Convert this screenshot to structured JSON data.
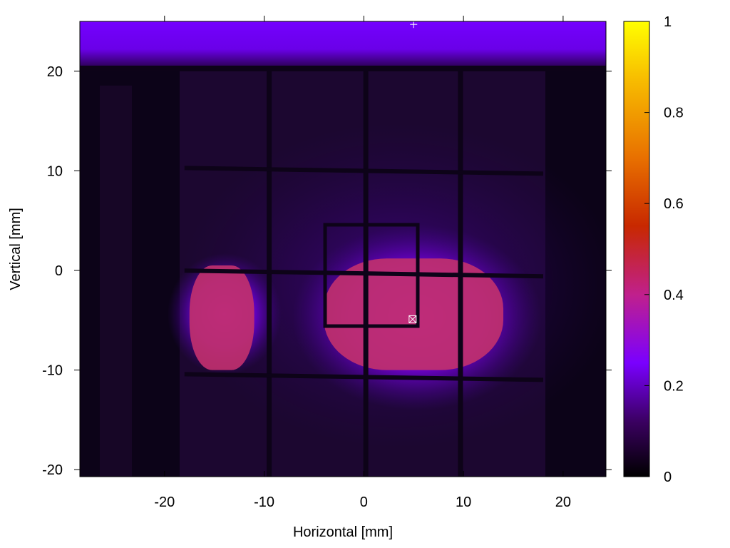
{
  "chart_data": {
    "type": "heatmap",
    "title": "",
    "xlabel": "Horizontal [mm]",
    "ylabel": "Vertical [mm]",
    "xlim": [
      -28.5,
      24.3
    ],
    "ylim": [
      -20.7,
      25.0
    ],
    "x_ticks": [
      -20,
      -10,
      0,
      10,
      20
    ],
    "x_tick_labels": [
      "-20",
      "-10",
      "0",
      "10",
      "20"
    ],
    "y_ticks": [
      -20,
      -10,
      0,
      10,
      20
    ],
    "y_tick_labels": [
      "-20",
      "-10",
      "0",
      "10",
      "20"
    ],
    "colorbar": {
      "range": [
        0,
        1
      ],
      "ticks": [
        0,
        0.2,
        0.4,
        0.6,
        0.8,
        1
      ],
      "tick_labels": [
        "0",
        "0.2",
        "0.4",
        "0.6",
        "0.8",
        "1"
      ],
      "colors": [
        "#000000",
        "#3a0060",
        "#7a00ff",
        "#c0208c",
        "#c82800",
        "#e87000",
        "#f8c000",
        "#ffff00"
      ]
    },
    "colors": {
      "background": "#1c0730",
      "top_band": "#7400ff",
      "grid_lines": "#0d0318",
      "hot_region": "#c0306e",
      "glow": "#9000ff"
    },
    "grid_lines_mm": {
      "vertical": [
        -9.5,
        0.2,
        9.7
      ],
      "horizontal": [
        10.0,
        -0.3,
        -10.7
      ]
    },
    "hot_regions": [
      {
        "x_range": [
          -17.5,
          -11
        ],
        "y_range": [
          -10,
          0.5
        ],
        "level": 0.42
      },
      {
        "x_range": [
          -4,
          14
        ],
        "y_range": [
          -10,
          1.2
        ],
        "level": 0.45
      }
    ],
    "markers": [
      {
        "type": "plus",
        "x": 5,
        "y": 24.7
      },
      {
        "type": "box-x",
        "x": 4.9,
        "y": -4.9
      }
    ]
  }
}
